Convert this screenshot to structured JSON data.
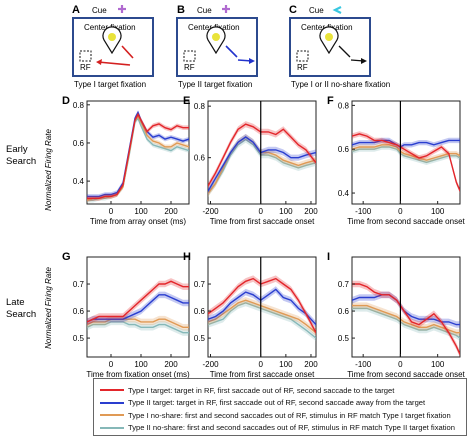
{
  "schematic": {
    "A": {
      "letter": "A",
      "cue": "Cue",
      "cue_color": "#b06ad0",
      "title": "Center fixation",
      "rf": "RF",
      "caption": "Type I target fixation",
      "arrow_color": "#d42020"
    },
    "B": {
      "letter": "B",
      "cue": "Cue",
      "cue_color": "#b06ad0",
      "title": "Center fixation",
      "rf": "RF",
      "caption": "Type II target fixation",
      "arrow_color": "#2233cc"
    },
    "C": {
      "letter": "C",
      "cue": "Cue",
      "cue_color": "#39c7e0",
      "title": "Center fixation",
      "rf": "RF",
      "caption": "Type I or II no-share fixation",
      "arrow_color": "#111111"
    }
  },
  "row_labels": {
    "early": "Early\nSearch",
    "late": "Late\nSearch"
  },
  "ylabel": "Normalized Firing Rate",
  "colors": {
    "type1": "#e3262b",
    "type2": "#2a3ecf",
    "type1ns": "#e09a55",
    "type2ns": "#86b8b8"
  },
  "legend": [
    {
      "key": "type1",
      "text": "Type I target: target in RF, first saccade out of RF, second saccade to the target"
    },
    {
      "key": "type2",
      "text": "Type II target:  target in RF, first saccade out of RF, second saccade away from the target"
    },
    {
      "key": "type1ns",
      "text": "Type I no-share: first and second saccades out of RF, stimulus in RF match Type I target fixation"
    },
    {
      "key": "type2ns",
      "text": "Type II no-share: first and second saccades out of RF, stimulus in RF match Type II target fixation"
    }
  ],
  "chart_data": [
    {
      "panel": "D",
      "type": "line",
      "xlabel": "Time from array onset (ms)",
      "xlim": [
        -80,
        260
      ],
      "ylim": [
        0.28,
        0.82
      ],
      "xticks": [
        0,
        100,
        200
      ],
      "yticks": [
        0.4,
        0.6,
        0.8
      ],
      "vline": null,
      "x": [
        -80,
        -60,
        -40,
        -20,
        0,
        20,
        40,
        60,
        80,
        90,
        100,
        120,
        140,
        160,
        180,
        200,
        220,
        240,
        260
      ],
      "series": [
        {
          "key": "type1",
          "values": [
            0.31,
            0.31,
            0.31,
            0.32,
            0.32,
            0.33,
            0.38,
            0.55,
            0.72,
            0.75,
            0.72,
            0.66,
            0.69,
            0.7,
            0.68,
            0.67,
            0.69,
            0.68,
            0.68
          ]
        },
        {
          "key": "type2",
          "values": [
            0.32,
            0.32,
            0.32,
            0.33,
            0.33,
            0.34,
            0.39,
            0.56,
            0.73,
            0.76,
            0.72,
            0.66,
            0.63,
            0.64,
            0.62,
            0.63,
            0.62,
            0.61,
            0.62
          ]
        },
        {
          "key": "type1ns",
          "values": [
            0.3,
            0.31,
            0.31,
            0.32,
            0.32,
            0.33,
            0.37,
            0.54,
            0.72,
            0.74,
            0.71,
            0.64,
            0.61,
            0.6,
            0.58,
            0.58,
            0.6,
            0.59,
            0.58
          ]
        },
        {
          "key": "type2ns",
          "values": [
            0.3,
            0.3,
            0.31,
            0.31,
            0.32,
            0.33,
            0.37,
            0.53,
            0.71,
            0.73,
            0.69,
            0.62,
            0.59,
            0.58,
            0.57,
            0.56,
            0.58,
            0.57,
            0.56
          ]
        }
      ]
    },
    {
      "panel": "E",
      "type": "line",
      "xlabel": "Time from first saccade onset",
      "xlim": [
        -210,
        220
      ],
      "ylim": [
        0.42,
        0.82
      ],
      "xticks": [
        -200,
        0,
        100,
        200
      ],
      "yticks": [
        0.6,
        0.8
      ],
      "vline": 0,
      "x": [
        -210,
        -180,
        -150,
        -120,
        -90,
        -60,
        -30,
        0,
        30,
        60,
        90,
        120,
        150,
        180,
        220
      ],
      "series": [
        {
          "key": "type1",
          "values": [
            0.49,
            0.54,
            0.6,
            0.66,
            0.71,
            0.73,
            0.72,
            0.7,
            0.7,
            0.69,
            0.71,
            0.68,
            0.65,
            0.63,
            0.58
          ]
        },
        {
          "key": "type2",
          "values": [
            0.47,
            0.52,
            0.57,
            0.62,
            0.66,
            0.68,
            0.66,
            0.62,
            0.63,
            0.63,
            0.62,
            0.6,
            0.6,
            0.61,
            0.62
          ]
        },
        {
          "key": "type1ns",
          "values": [
            0.46,
            0.5,
            0.56,
            0.62,
            0.66,
            0.68,
            0.66,
            0.62,
            0.62,
            0.61,
            0.59,
            0.58,
            0.57,
            0.58,
            0.59
          ]
        },
        {
          "key": "type2ns",
          "values": [
            0.46,
            0.5,
            0.55,
            0.61,
            0.65,
            0.67,
            0.65,
            0.61,
            0.61,
            0.6,
            0.58,
            0.57,
            0.56,
            0.57,
            0.58
          ]
        }
      ]
    },
    {
      "panel": "F",
      "type": "line",
      "xlabel": "Time from second saccade onset",
      "xlim": [
        -130,
        160
      ],
      "ylim": [
        0.35,
        0.82
      ],
      "xticks": [
        -100,
        0,
        100
      ],
      "yticks": [
        0.4,
        0.6,
        0.8
      ],
      "vline": 0,
      "x": [
        -130,
        -110,
        -90,
        -70,
        -50,
        -30,
        -10,
        0,
        10,
        30,
        50,
        70,
        90,
        110,
        130,
        150,
        160
      ],
      "series": [
        {
          "key": "type1",
          "values": [
            0.66,
            0.67,
            0.66,
            0.64,
            0.64,
            0.63,
            0.62,
            0.61,
            0.6,
            0.58,
            0.56,
            0.57,
            0.59,
            0.61,
            0.58,
            0.45,
            0.41
          ]
        },
        {
          "key": "type2",
          "values": [
            0.62,
            0.63,
            0.63,
            0.63,
            0.64,
            0.64,
            0.62,
            0.61,
            0.62,
            0.62,
            0.63,
            0.63,
            0.62,
            0.63,
            0.64,
            0.64,
            0.64
          ]
        },
        {
          "key": "type1ns",
          "values": [
            0.6,
            0.61,
            0.61,
            0.61,
            0.62,
            0.62,
            0.61,
            0.59,
            0.58,
            0.57,
            0.56,
            0.55,
            0.56,
            0.57,
            0.58,
            0.58,
            0.57
          ]
        },
        {
          "key": "type2ns",
          "values": [
            0.59,
            0.6,
            0.6,
            0.6,
            0.61,
            0.61,
            0.6,
            0.58,
            0.57,
            0.56,
            0.55,
            0.54,
            0.55,
            0.56,
            0.57,
            0.57,
            0.56
          ]
        }
      ]
    },
    {
      "panel": "G",
      "type": "line",
      "xlabel": "Time from fixation onset (ms)",
      "xlim": [
        -80,
        260
      ],
      "ylim": [
        0.43,
        0.8
      ],
      "xticks": [
        0,
        100,
        200
      ],
      "yticks": [
        0.5,
        0.6,
        0.7
      ],
      "vline": null,
      "x": [
        -80,
        -60,
        -40,
        -20,
        0,
        20,
        40,
        60,
        80,
        100,
        120,
        140,
        160,
        180,
        200,
        220,
        240,
        260
      ],
      "series": [
        {
          "key": "type1",
          "values": [
            0.56,
            0.57,
            0.58,
            0.58,
            0.58,
            0.58,
            0.58,
            0.6,
            0.62,
            0.64,
            0.66,
            0.68,
            0.7,
            0.7,
            0.71,
            0.7,
            0.69,
            0.69
          ]
        },
        {
          "key": "type2",
          "values": [
            0.56,
            0.57,
            0.57,
            0.57,
            0.57,
            0.57,
            0.57,
            0.58,
            0.59,
            0.6,
            0.62,
            0.64,
            0.66,
            0.66,
            0.65,
            0.64,
            0.63,
            0.63
          ]
        },
        {
          "key": "type1ns",
          "values": [
            0.55,
            0.56,
            0.56,
            0.56,
            0.57,
            0.57,
            0.57,
            0.57,
            0.57,
            0.56,
            0.56,
            0.56,
            0.57,
            0.57,
            0.56,
            0.55,
            0.54,
            0.54
          ]
        },
        {
          "key": "type2ns",
          "values": [
            0.54,
            0.55,
            0.55,
            0.55,
            0.56,
            0.56,
            0.56,
            0.55,
            0.55,
            0.54,
            0.54,
            0.54,
            0.55,
            0.55,
            0.54,
            0.53,
            0.52,
            0.52
          ]
        }
      ]
    },
    {
      "panel": "H",
      "type": "line",
      "xlabel": "Time from first saccade onset",
      "xlim": [
        -210,
        220
      ],
      "ylim": [
        0.43,
        0.8
      ],
      "xticks": [
        -200,
        0,
        100,
        200
      ],
      "yticks": [
        0.5,
        0.6,
        0.7
      ],
      "vline": 0,
      "x": [
        -210,
        -180,
        -150,
        -120,
        -90,
        -60,
        -30,
        0,
        30,
        60,
        90,
        120,
        150,
        180,
        220
      ],
      "series": [
        {
          "key": "type1",
          "values": [
            0.59,
            0.61,
            0.63,
            0.66,
            0.69,
            0.71,
            0.72,
            0.7,
            0.71,
            0.72,
            0.7,
            0.68,
            0.64,
            0.59,
            0.52
          ]
        },
        {
          "key": "type2",
          "values": [
            0.57,
            0.58,
            0.6,
            0.63,
            0.65,
            0.67,
            0.66,
            0.64,
            0.66,
            0.68,
            0.65,
            0.64,
            0.61,
            0.59,
            0.55
          ]
        },
        {
          "key": "type1ns",
          "values": [
            0.56,
            0.57,
            0.59,
            0.61,
            0.63,
            0.64,
            0.63,
            0.62,
            0.61,
            0.6,
            0.59,
            0.58,
            0.57,
            0.55,
            0.52
          ]
        },
        {
          "key": "type2ns",
          "values": [
            0.55,
            0.56,
            0.57,
            0.6,
            0.62,
            0.63,
            0.62,
            0.61,
            0.6,
            0.59,
            0.58,
            0.57,
            0.55,
            0.53,
            0.5
          ]
        }
      ]
    },
    {
      "panel": "I",
      "type": "line",
      "xlabel": "Time from second saccade onset",
      "xlim": [
        -130,
        160
      ],
      "ylim": [
        0.43,
        0.8
      ],
      "xticks": [
        -100,
        0,
        100
      ],
      "yticks": [
        0.5,
        0.6,
        0.7
      ],
      "vline": 0,
      "x": [
        -130,
        -110,
        -90,
        -70,
        -50,
        -30,
        -10,
        0,
        10,
        30,
        50,
        70,
        90,
        110,
        130,
        150,
        160
      ],
      "series": [
        {
          "key": "type1",
          "values": [
            0.7,
            0.7,
            0.69,
            0.67,
            0.66,
            0.66,
            0.64,
            0.62,
            0.6,
            0.56,
            0.55,
            0.57,
            0.59,
            0.56,
            0.52,
            0.47,
            0.44
          ]
        },
        {
          "key": "type2",
          "values": [
            0.64,
            0.65,
            0.65,
            0.65,
            0.66,
            0.66,
            0.64,
            0.62,
            0.6,
            0.58,
            0.57,
            0.57,
            0.57,
            0.56,
            0.56,
            0.55,
            0.55
          ]
        },
        {
          "key": "type1ns",
          "values": [
            0.62,
            0.62,
            0.62,
            0.61,
            0.6,
            0.59,
            0.58,
            0.57,
            0.56,
            0.55,
            0.54,
            0.54,
            0.55,
            0.54,
            0.53,
            0.52,
            0.52
          ]
        },
        {
          "key": "type2ns",
          "values": [
            0.61,
            0.61,
            0.61,
            0.6,
            0.59,
            0.58,
            0.57,
            0.56,
            0.55,
            0.54,
            0.53,
            0.53,
            0.54,
            0.53,
            0.52,
            0.51,
            0.5
          ]
        }
      ]
    }
  ]
}
